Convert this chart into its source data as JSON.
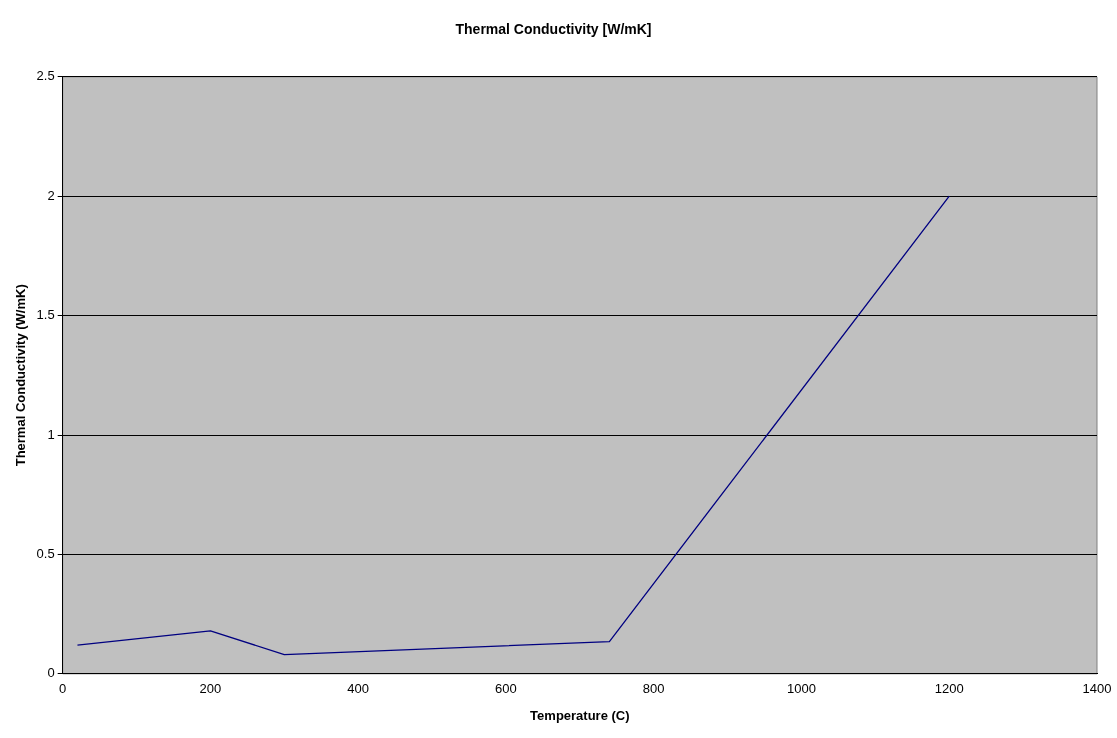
{
  "chart_data": {
    "type": "line",
    "title": "Thermal Conductivity [W/mK]",
    "xlabel": "Temperature (C)",
    "ylabel": "Thermal Conductivity (W/mK)",
    "x": [
      20,
      200,
      300,
      740,
      1200
    ],
    "series": [
      {
        "color": "#000080",
        "values": [
          0.12,
          0.18,
          0.08,
          0.135,
          2.0
        ]
      }
    ],
    "xlim": [
      0,
      1400
    ],
    "xticks": [
      0,
      200,
      400,
      600,
      800,
      1000,
      1200,
      1400
    ],
    "ylim": [
      0,
      2.5
    ],
    "yticks": [
      0,
      0.5,
      1,
      1.5,
      2,
      2.5
    ],
    "grid": "y",
    "legend": false,
    "marker": "none",
    "line_style": "solid"
  }
}
